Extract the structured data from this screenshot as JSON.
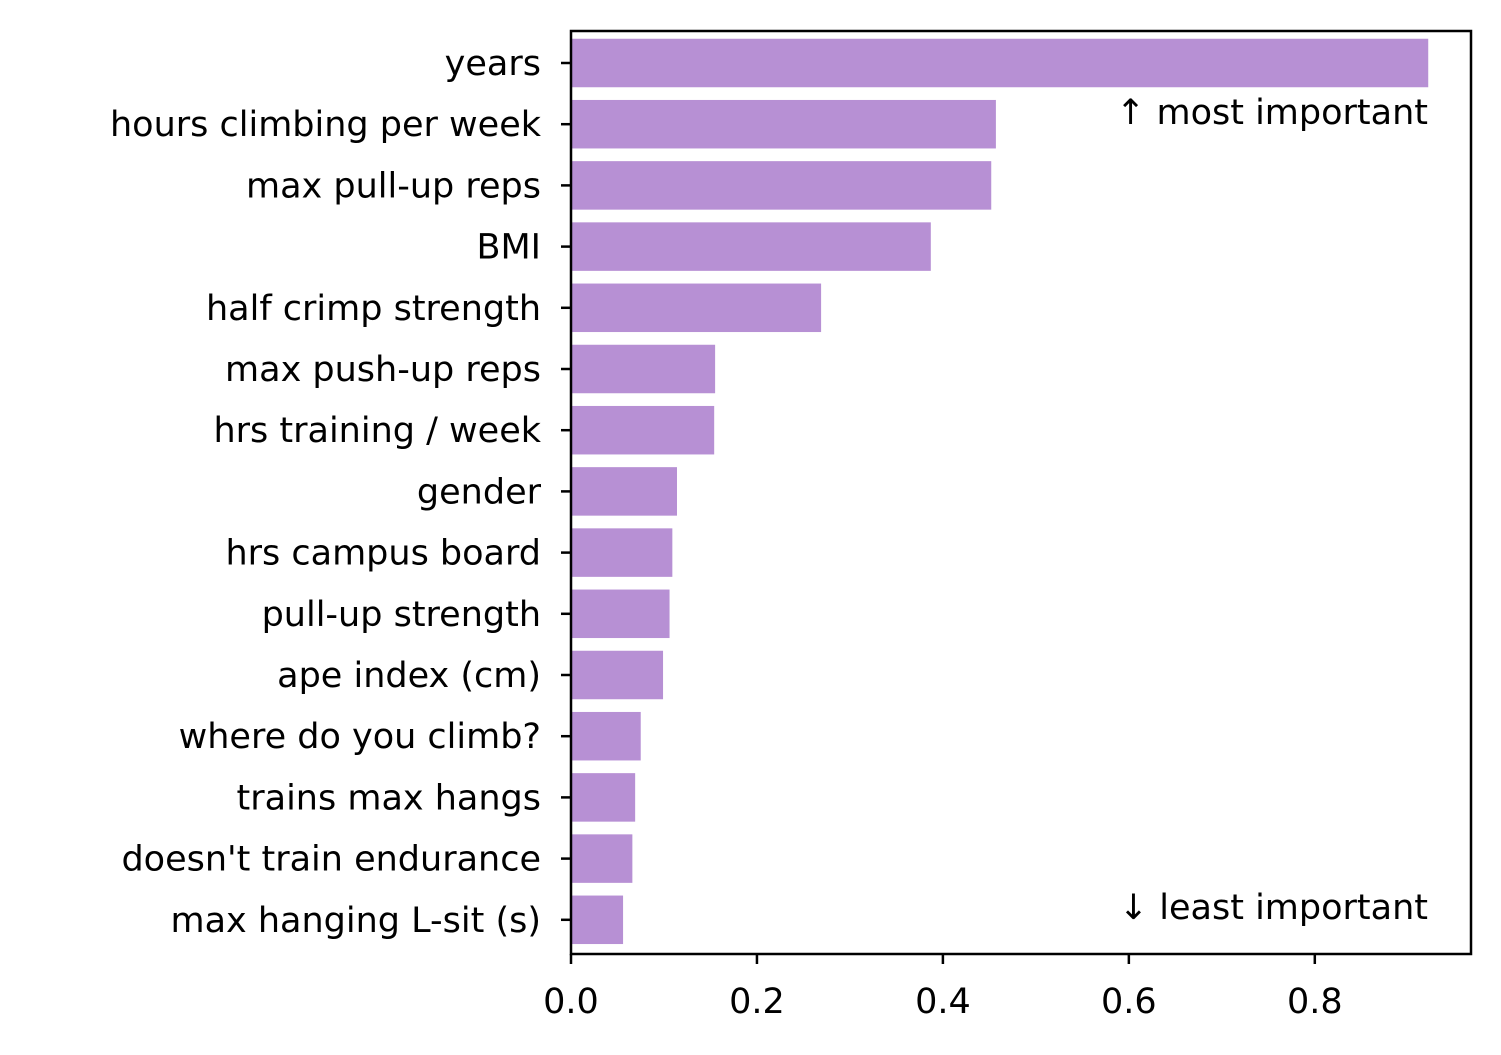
{
  "chart_data": {
    "type": "bar",
    "orientation": "horizontal",
    "categories": [
      "years",
      "hours climbing per week",
      "max pull-up reps",
      "BMI",
      "half crimp strength",
      "max push-up reps",
      "hrs training / week",
      "gender",
      "hrs campus board",
      "pull-up strength",
      "ape index (cm)",
      "where do you climb?",
      "trains max hangs",
      "doesn't train endurance",
      "max hanging L-sit (s)"
    ],
    "values": [
      0.922,
      0.457,
      0.452,
      0.387,
      0.269,
      0.155,
      0.154,
      0.114,
      0.109,
      0.106,
      0.099,
      0.075,
      0.069,
      0.066,
      0.056
    ],
    "xlim": [
      0,
      0.968
    ],
    "xticks": [
      0.0,
      0.2,
      0.4,
      0.6,
      0.8
    ],
    "xtick_labels": [
      "0.0",
      "0.2",
      "0.4",
      "0.6",
      "0.8"
    ],
    "bar_color": "#b790d4",
    "annotations": {
      "top": "↑ most important",
      "bottom": "↓ least important"
    },
    "grid": false,
    "legend": "none"
  }
}
